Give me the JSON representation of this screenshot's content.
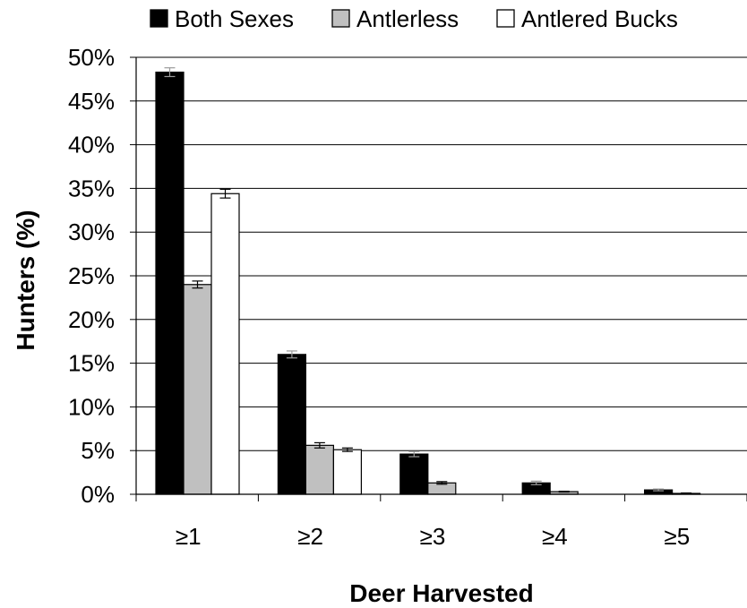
{
  "chart_data": {
    "type": "bar",
    "title": "",
    "xlabel": "Deer Harvested",
    "ylabel": "Hunters (%)",
    "categories": [
      "≥1",
      "≥2",
      "≥3",
      "≥4",
      "≥5"
    ],
    "ylim": [
      0,
      50
    ],
    "yticks": [
      0,
      5,
      10,
      15,
      20,
      25,
      30,
      35,
      40,
      45,
      50
    ],
    "ytick_suffix": "%",
    "grid": "horizontal",
    "legend_position": "top",
    "series": [
      {
        "name": "Both Sexes",
        "color": "#000000",
        "values": [
          48.3,
          16.0,
          4.6,
          1.3,
          0.5
        ],
        "error": [
          0.5,
          0.4,
          0.3,
          0.2,
          0.1
        ]
      },
      {
        "name": "Antlerless",
        "color": "#c0c0c0",
        "values": [
          24.0,
          5.6,
          1.3,
          0.3,
          0.1
        ],
        "error": [
          0.4,
          0.3,
          0.15,
          0.05,
          0.05
        ]
      },
      {
        "name": "Antlered Bucks",
        "color": "#ffffff",
        "values": [
          34.4,
          5.1,
          0.0,
          0.0,
          0.0
        ],
        "error": [
          0.5,
          0.2,
          0.0,
          0.0,
          0.0
        ]
      }
    ]
  }
}
